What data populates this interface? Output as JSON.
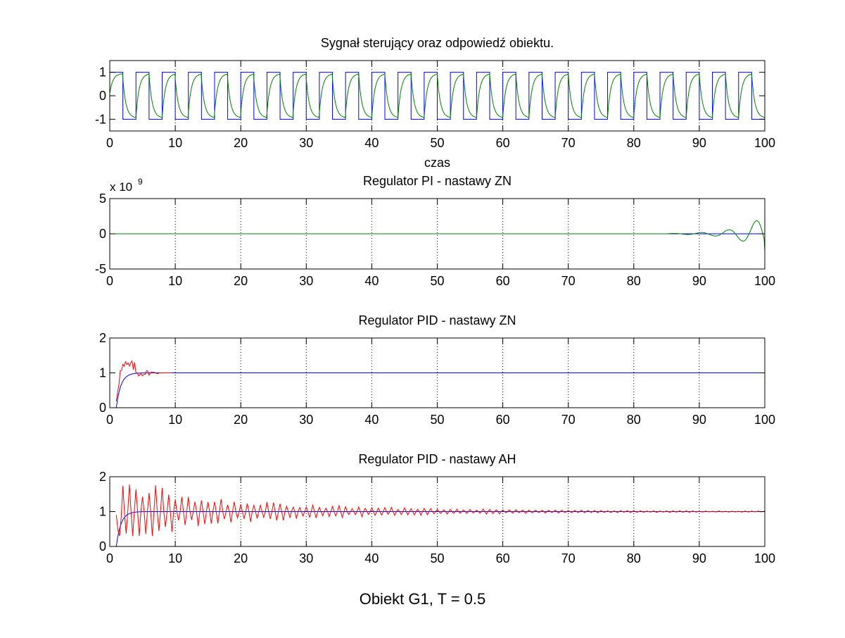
{
  "figure": {
    "caption": "Obiekt G1, T = 0.5",
    "colors": {
      "background": "#ffffff",
      "blue": "#0000ff",
      "green": "#008000",
      "red": "#ff0000",
      "axes": "#000000"
    }
  },
  "chart_data": [
    {
      "type": "line",
      "title": "Sygnał sterujący oraz odpowiedź obiektu.",
      "xlabel": "czas",
      "ylabel": "",
      "xlim": [
        0,
        100
      ],
      "ylim": [
        -1.5,
        1.5
      ],
      "xticks": [
        0,
        10,
        20,
        30,
        40,
        50,
        60,
        70,
        80,
        90,
        100
      ],
      "yticks": [
        -1,
        0,
        1
      ],
      "grid": "x-dotted",
      "series": [
        {
          "kind": "square_wave",
          "color": "#0000ff",
          "amplitude": 1,
          "half_period": 2,
          "start": 0
        },
        {
          "kind": "lagged_wave",
          "color": "#008000",
          "amplitude": 0.95,
          "half_period": 2,
          "time_constant": 0.5
        }
      ]
    },
    {
      "type": "line",
      "title": "Regulator PI - nastawy ZN",
      "xlabel": "",
      "ylabel": "",
      "exponent_label": "x 10",
      "exponent": "9",
      "xlim": [
        0,
        100
      ],
      "ylim": [
        -5,
        5
      ],
      "xticks": [
        0,
        10,
        20,
        30,
        40,
        50,
        60,
        70,
        80,
        90,
        100
      ],
      "yticks": [
        -5,
        0,
        5
      ],
      "grid": "x-dotted",
      "series": [
        {
          "kind": "constant",
          "color": "#0000ff",
          "value": 0
        },
        {
          "kind": "growing_oscillation",
          "color": "#008000",
          "amplitude_at_end": 2.4,
          "onset": 85,
          "period": 4.2
        }
      ]
    },
    {
      "type": "line",
      "title": "Regulator PID - nastawy ZN",
      "xlabel": "",
      "ylabel": "",
      "xlim": [
        0,
        100
      ],
      "ylim": [
        0,
        2
      ],
      "xticks": [
        0,
        10,
        20,
        30,
        40,
        50,
        60,
        70,
        80,
        90,
        100
      ],
      "yticks": [
        0,
        1,
        2
      ],
      "grid": "x-dotted",
      "series": [
        {
          "kind": "first_order_step",
          "color": "#0000ff",
          "start": 1,
          "time_constant": 0.7,
          "final": 1
        },
        {
          "kind": "noisy_step",
          "color": "#ff0000",
          "start": 1,
          "end": 9.5,
          "peak": 1.45,
          "settle": 8
        }
      ]
    },
    {
      "type": "line",
      "title": "Regulator PID - nastawy AH",
      "xlabel": "",
      "ylabel": "",
      "xlim": [
        0,
        100
      ],
      "ylim": [
        0,
        2
      ],
      "xticks": [
        0,
        10,
        20,
        30,
        40,
        50,
        60,
        70,
        80,
        90,
        100
      ],
      "yticks": [
        0,
        1,
        2
      ],
      "grid": "x-dotted",
      "series": [
        {
          "kind": "first_order_step",
          "color": "#0000ff",
          "start": 1,
          "time_constant": 0.7,
          "final": 1
        },
        {
          "kind": "decaying_spikes",
          "color": "#ff0000",
          "start": 1,
          "end": 100,
          "initial_amplitude": 1.0,
          "decay": 25
        }
      ]
    }
  ]
}
